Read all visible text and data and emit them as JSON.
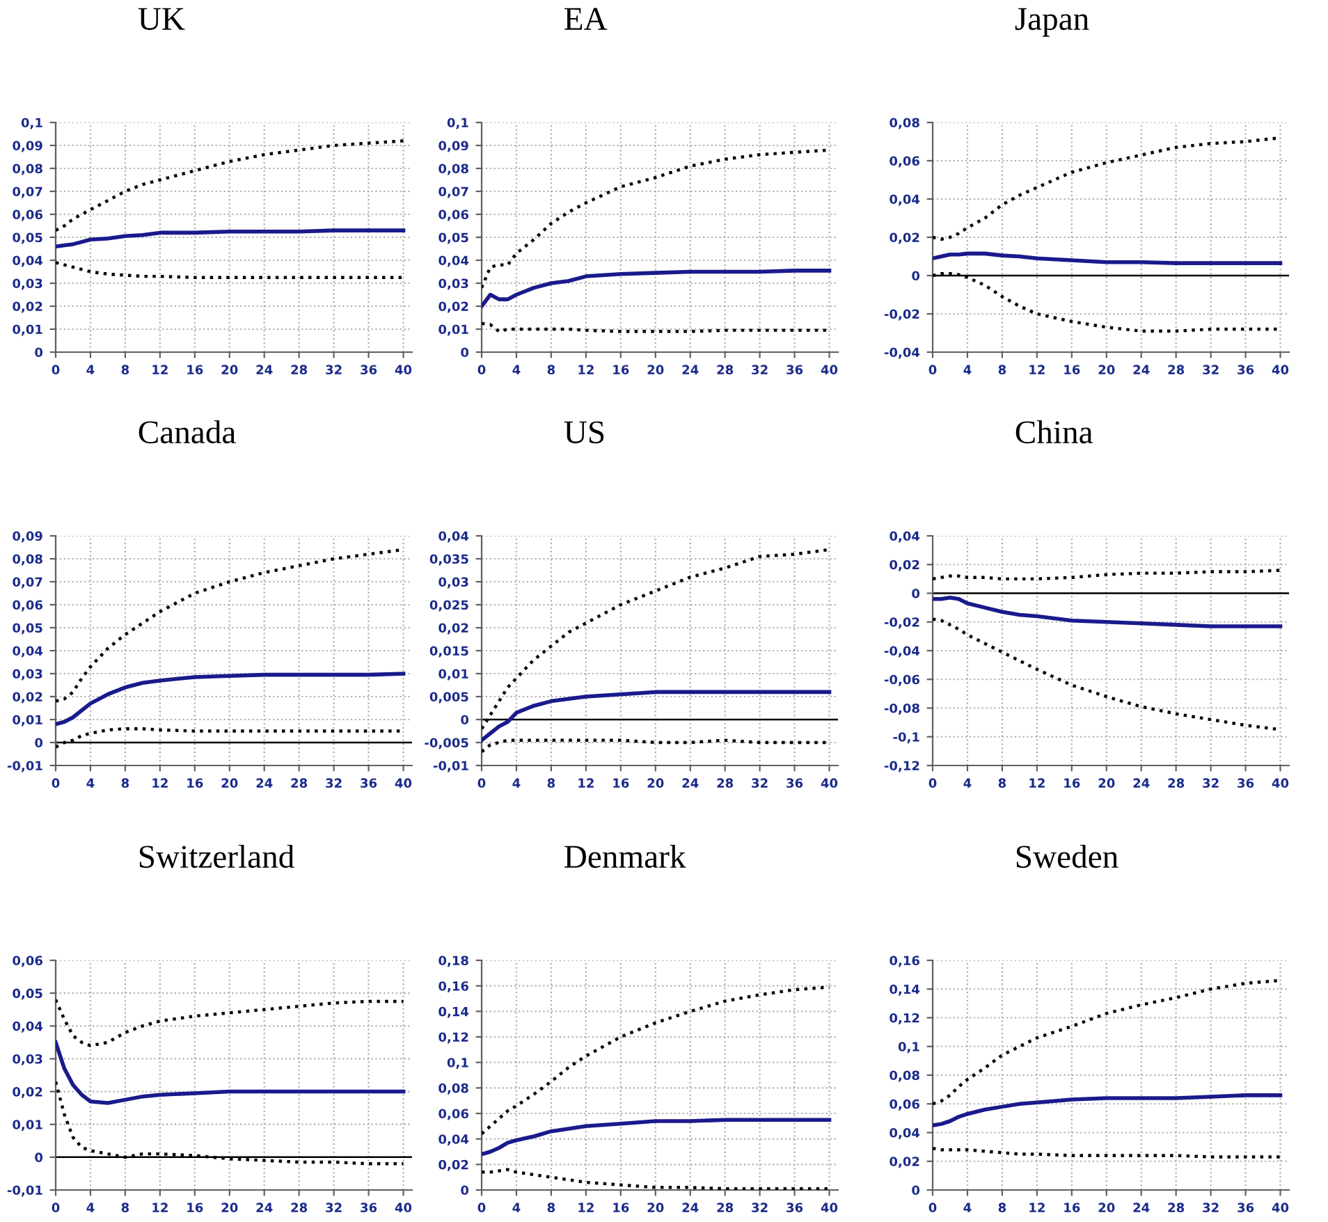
{
  "chart_data": [
    {
      "type": "line",
      "title": "UK",
      "x": [
        0,
        1,
        2,
        3,
        4,
        6,
        8,
        10,
        12,
        16,
        20,
        24,
        28,
        32,
        36,
        40
      ],
      "xlim": [
        0,
        41
      ],
      "xticks": [
        0,
        4,
        8,
        12,
        16,
        20,
        24,
        28,
        32,
        36,
        40
      ],
      "ylim": [
        0,
        0.1
      ],
      "yticks": [
        0,
        {
          "value": 0.01,
          "label": "0,01"
        },
        {
          "value": 0.02,
          "label": "0,02"
        },
        {
          "value": 0.03,
          "label": "0,03"
        },
        {
          "value": 0.04,
          "label": "0,04"
        },
        {
          "value": 0.05,
          "label": "0,05"
        },
        {
          "value": 0.06,
          "label": "0,06"
        },
        {
          "value": 0.07,
          "label": "0,07"
        },
        {
          "value": 0.08,
          "label": "0,08"
        },
        {
          "value": 0.09,
          "label": "0,09"
        },
        {
          "value": 0.1,
          "label": "0,1"
        }
      ],
      "grid": true,
      "series": [
        {
          "color": "#000000",
          "line_style": "dotted",
          "values": [
            0.053,
            0.055,
            0.058,
            0.06,
            0.062,
            0.066,
            0.07,
            0.073,
            0.075,
            0.079,
            0.083,
            0.086,
            0.088,
            0.09,
            0.091,
            0.092
          ]
        },
        {
          "color": "#1a1a8c",
          "line_style": "solid",
          "values": [
            0.046,
            0.0465,
            0.047,
            0.048,
            0.049,
            0.0495,
            0.0505,
            0.051,
            0.052,
            0.052,
            0.0525,
            0.0525,
            0.0525,
            0.053,
            0.053,
            0.053
          ]
        },
        {
          "color": "#000000",
          "line_style": "dotted",
          "values": [
            0.039,
            0.038,
            0.037,
            0.036,
            0.035,
            0.034,
            0.0335,
            0.033,
            0.033,
            0.0325,
            0.0325,
            0.0325,
            0.0325,
            0.0325,
            0.0325,
            0.0325
          ]
        }
      ]
    },
    {
      "type": "line",
      "title": "EA",
      "x": [
        0,
        1,
        2,
        3,
        4,
        6,
        8,
        10,
        12,
        16,
        20,
        24,
        28,
        32,
        36,
        40
      ],
      "xlim": [
        0,
        41
      ],
      "xticks": [
        0,
        4,
        8,
        12,
        16,
        20,
        24,
        28,
        32,
        36,
        40
      ],
      "ylim": [
        0,
        0.1
      ],
      "yticks": [
        0,
        {
          "value": 0.01,
          "label": "0,01"
        },
        {
          "value": 0.02,
          "label": "0,02"
        },
        {
          "value": 0.03,
          "label": "0,03"
        },
        {
          "value": 0.04,
          "label": "0,04"
        },
        {
          "value": 0.05,
          "label": "0,05"
        },
        {
          "value": 0.06,
          "label": "0,06"
        },
        {
          "value": 0.07,
          "label": "0,07"
        },
        {
          "value": 0.08,
          "label": "0,08"
        },
        {
          "value": 0.09,
          "label": "0,09"
        },
        {
          "value": 0.1,
          "label": "0,1"
        }
      ],
      "grid": true,
      "series": [
        {
          "color": "#000000",
          "line_style": "dotted",
          "values": [
            0.028,
            0.037,
            0.038,
            0.038,
            0.043,
            0.049,
            0.056,
            0.061,
            0.065,
            0.072,
            0.076,
            0.081,
            0.084,
            0.086,
            0.087,
            0.088
          ]
        },
        {
          "color": "#1a1a8c",
          "line_style": "solid",
          "values": [
            0.02,
            0.025,
            0.023,
            0.023,
            0.025,
            0.028,
            0.03,
            0.031,
            0.033,
            0.034,
            0.0345,
            0.035,
            0.035,
            0.035,
            0.0355,
            0.0355
          ]
        },
        {
          "color": "#000000",
          "line_style": "dotted",
          "values": [
            0.0125,
            0.012,
            0.009,
            0.01,
            0.01,
            0.01,
            0.01,
            0.01,
            0.0095,
            0.009,
            0.009,
            0.009,
            0.0095,
            0.0095,
            0.0095,
            0.0095
          ]
        }
      ]
    },
    {
      "type": "line",
      "title": "Japan",
      "x": [
        0,
        1,
        2,
        3,
        4,
        6,
        8,
        10,
        12,
        16,
        20,
        24,
        28,
        32,
        36,
        40
      ],
      "xlim": [
        0,
        41
      ],
      "xticks": [
        0,
        4,
        8,
        12,
        16,
        20,
        24,
        28,
        32,
        36,
        40
      ],
      "ylim": [
        -0.04,
        0.08
      ],
      "yticks": [
        {
          "value": -0.04,
          "label": "-0,04"
        },
        {
          "value": -0.02,
          "label": "-0,02"
        },
        0,
        {
          "value": 0.02,
          "label": "0,02"
        },
        {
          "value": 0.04,
          "label": "0,04"
        },
        {
          "value": 0.06,
          "label": "0,06"
        },
        {
          "value": 0.08,
          "label": "0,08"
        }
      ],
      "grid": true,
      "ref_lines": [
        {
          "axis": "y",
          "value": 0,
          "color": "#000000"
        }
      ],
      "series": [
        {
          "color": "#000000",
          "line_style": "dotted",
          "values": [
            0.02,
            0.019,
            0.02,
            0.022,
            0.025,
            0.03,
            0.037,
            0.042,
            0.046,
            0.054,
            0.059,
            0.063,
            0.067,
            0.069,
            0.07,
            0.072
          ]
        },
        {
          "color": "#1a1a8c",
          "line_style": "solid",
          "values": [
            0.009,
            0.01,
            0.011,
            0.011,
            0.0115,
            0.0115,
            0.0105,
            0.01,
            0.009,
            0.008,
            0.007,
            0.007,
            0.0065,
            0.0065,
            0.0065,
            0.0065
          ]
        },
        {
          "color": "#000000",
          "line_style": "dotted",
          "values": [
            0,
            0.001,
            0.001,
            0.0005,
            -0.001,
            -0.005,
            -0.011,
            -0.016,
            -0.02,
            -0.024,
            -0.027,
            -0.029,
            -0.029,
            -0.028,
            -0.028,
            -0.028
          ]
        }
      ]
    },
    {
      "type": "line",
      "title": "Canada",
      "x": [
        0,
        1,
        2,
        3,
        4,
        6,
        8,
        10,
        12,
        16,
        20,
        24,
        28,
        32,
        36,
        40
      ],
      "xlim": [
        0,
        41
      ],
      "xticks": [
        0,
        4,
        8,
        12,
        16,
        20,
        24,
        28,
        32,
        36,
        40
      ],
      "ylim": [
        -0.01,
        0.09
      ],
      "yticks": [
        {
          "value": -0.01,
          "label": "-0,01"
        },
        0,
        {
          "value": 0.01,
          "label": "0,01"
        },
        {
          "value": 0.02,
          "label": "0,02"
        },
        {
          "value": 0.03,
          "label": "0,03"
        },
        {
          "value": 0.04,
          "label": "0,04"
        },
        {
          "value": 0.05,
          "label": "0,05"
        },
        {
          "value": 0.06,
          "label": "0,06"
        },
        {
          "value": 0.07,
          "label": "0,07"
        },
        {
          "value": 0.08,
          "label": "0,08"
        },
        {
          "value": 0.09,
          "label": "0,09"
        }
      ],
      "grid": true,
      "ref_lines": [
        {
          "axis": "y",
          "value": 0,
          "color": "#000000"
        }
      ],
      "series": [
        {
          "color": "#000000",
          "line_style": "dotted",
          "values": [
            0.018,
            0.019,
            0.022,
            0.028,
            0.033,
            0.041,
            0.047,
            0.052,
            0.057,
            0.065,
            0.07,
            0.074,
            0.077,
            0.08,
            0.082,
            0.084
          ]
        },
        {
          "color": "#1a1a8c",
          "line_style": "solid",
          "values": [
            0.008,
            0.009,
            0.011,
            0.014,
            0.017,
            0.021,
            0.024,
            0.026,
            0.027,
            0.0285,
            0.029,
            0.0295,
            0.0295,
            0.0295,
            0.0295,
            0.03
          ]
        },
        {
          "color": "#000000",
          "line_style": "dotted",
          "values": [
            -0.002,
            0,
            0.001,
            0.003,
            0.004,
            0.0055,
            0.006,
            0.006,
            0.0055,
            0.005,
            0.005,
            0.005,
            0.005,
            0.005,
            0.005,
            0.005
          ]
        }
      ]
    },
    {
      "type": "line",
      "title": "US",
      "x": [
        0,
        1,
        2,
        3,
        4,
        6,
        8,
        10,
        12,
        16,
        20,
        24,
        28,
        32,
        36,
        40
      ],
      "xlim": [
        0,
        41
      ],
      "xticks": [
        0,
        4,
        8,
        12,
        16,
        20,
        24,
        28,
        32,
        36,
        40
      ],
      "ylim": [
        -0.01,
        0.04
      ],
      "yticks": [
        {
          "value": -0.01,
          "label": "-0,01"
        },
        {
          "value": -0.005,
          "label": "-0,005"
        },
        0,
        {
          "value": 0.005,
          "label": "0,005"
        },
        {
          "value": 0.01,
          "label": "0,01"
        },
        {
          "value": 0.015,
          "label": "0,015"
        },
        {
          "value": 0.02,
          "label": "0,02"
        },
        {
          "value": 0.025,
          "label": "0,025"
        },
        {
          "value": 0.03,
          "label": "0,03"
        },
        {
          "value": 0.035,
          "label": "0,035"
        },
        {
          "value": 0.04,
          "label": "0,04"
        }
      ],
      "grid": true,
      "ref_lines": [
        {
          "axis": "y",
          "value": 0,
          "color": "#000000"
        }
      ],
      "series": [
        {
          "color": "#000000",
          "line_style": "dotted",
          "values": [
            -0.002,
            0.001,
            0.004,
            0.007,
            0.009,
            0.013,
            0.016,
            0.019,
            0.021,
            0.025,
            0.028,
            0.031,
            0.033,
            0.0355,
            0.036,
            0.037
          ]
        },
        {
          "color": "#1a1a8c",
          "line_style": "solid",
          "values": [
            -0.0045,
            -0.003,
            -0.0015,
            -0.0005,
            0.0015,
            0.003,
            0.004,
            0.0045,
            0.005,
            0.0055,
            0.006,
            0.006,
            0.006,
            0.006,
            0.006,
            0.006
          ]
        },
        {
          "color": "#000000",
          "line_style": "dotted",
          "values": [
            -0.007,
            -0.0055,
            -0.005,
            -0.0045,
            -0.0045,
            -0.0045,
            -0.0045,
            -0.0045,
            -0.0045,
            -0.0045,
            -0.005,
            -0.005,
            -0.0045,
            -0.005,
            -0.005,
            -0.005
          ]
        }
      ]
    },
    {
      "type": "line",
      "title": "China",
      "x": [
        0,
        1,
        2,
        3,
        4,
        6,
        8,
        10,
        12,
        16,
        20,
        24,
        28,
        32,
        36,
        40
      ],
      "xlim": [
        0,
        41
      ],
      "xticks": [
        0,
        4,
        8,
        12,
        16,
        20,
        24,
        28,
        32,
        36,
        40
      ],
      "ylim": [
        -0.12,
        0.04
      ],
      "yticks": [
        {
          "value": -0.12,
          "label": "-0,12"
        },
        {
          "value": -0.1,
          "label": "-0,1"
        },
        {
          "value": -0.08,
          "label": "-0,08"
        },
        {
          "value": -0.06,
          "label": "-0,06"
        },
        {
          "value": -0.04,
          "label": "-0,04"
        },
        {
          "value": -0.02,
          "label": "-0,02"
        },
        0,
        {
          "value": 0.02,
          "label": "0,02"
        },
        {
          "value": 0.04,
          "label": "0,04"
        }
      ],
      "grid": true,
      "ref_lines": [
        {
          "axis": "y",
          "value": 0,
          "color": "#000000"
        }
      ],
      "series": [
        {
          "color": "#000000",
          "line_style": "dotted",
          "values": [
            0.01,
            0.011,
            0.012,
            0.012,
            0.011,
            0.011,
            0.01,
            0.01,
            0.01,
            0.011,
            0.013,
            0.014,
            0.014,
            0.015,
            0.015,
            0.016
          ]
        },
        {
          "color": "#1a1a8c",
          "line_style": "solid",
          "values": [
            -0.004,
            -0.004,
            -0.003,
            -0.004,
            -0.007,
            -0.01,
            -0.013,
            -0.015,
            -0.016,
            -0.019,
            -0.02,
            -0.021,
            -0.022,
            -0.023,
            -0.023,
            -0.023
          ]
        },
        {
          "color": "#000000",
          "line_style": "dotted",
          "values": [
            -0.018,
            -0.019,
            -0.022,
            -0.025,
            -0.029,
            -0.035,
            -0.041,
            -0.047,
            -0.053,
            -0.064,
            -0.072,
            -0.079,
            -0.084,
            -0.088,
            -0.092,
            -0.095
          ]
        }
      ]
    },
    {
      "type": "line",
      "title": "Switzerland",
      "x": [
        0,
        1,
        2,
        3,
        4,
        6,
        8,
        10,
        12,
        16,
        20,
        24,
        28,
        32,
        36,
        40
      ],
      "xlim": [
        0,
        41
      ],
      "xticks": [
        0,
        4,
        8,
        12,
        16,
        20,
        24,
        28,
        32,
        36,
        40
      ],
      "ylim": [
        -0.01,
        0.06
      ],
      "yticks": [
        {
          "value": -0.01,
          "label": "-0,01"
        },
        0,
        {
          "value": 0.01,
          "label": "0,01"
        },
        {
          "value": 0.02,
          "label": "0,02"
        },
        {
          "value": 0.03,
          "label": "0,03"
        },
        {
          "value": 0.04,
          "label": "0,04"
        },
        {
          "value": 0.05,
          "label": "0,05"
        },
        {
          "value": 0.06,
          "label": "0,06"
        }
      ],
      "grid": true,
      "ref_lines": [
        {
          "axis": "y",
          "value": 0,
          "color": "#000000"
        }
      ],
      "series": [
        {
          "color": "#000000",
          "line_style": "dotted",
          "values": [
            0.048,
            0.042,
            0.037,
            0.035,
            0.034,
            0.035,
            0.038,
            0.04,
            0.0415,
            0.043,
            0.044,
            0.045,
            0.046,
            0.047,
            0.0475,
            0.0475
          ]
        },
        {
          "color": "#1a1a8c",
          "line_style": "solid",
          "values": [
            0.035,
            0.027,
            0.022,
            0.019,
            0.017,
            0.0165,
            0.0175,
            0.0185,
            0.019,
            0.0195,
            0.02,
            0.02,
            0.02,
            0.02,
            0.02,
            0.02
          ]
        },
        {
          "color": "#000000",
          "line_style": "dotted",
          "values": [
            0.023,
            0.013,
            0.006,
            0.003,
            0.002,
            0.001,
            0,
            0.001,
            0.001,
            0.0005,
            -0.0005,
            -0.001,
            -0.0015,
            -0.0015,
            -0.002,
            -0.002
          ]
        }
      ]
    },
    {
      "type": "line",
      "title": "Denmark",
      "x": [
        0,
        1,
        2,
        3,
        4,
        6,
        8,
        10,
        12,
        16,
        20,
        24,
        28,
        32,
        36,
        40
      ],
      "xlim": [
        0,
        41
      ],
      "xticks": [
        0,
        4,
        8,
        12,
        16,
        20,
        24,
        28,
        32,
        36,
        40
      ],
      "ylim": [
        0,
        0.18
      ],
      "yticks": [
        0,
        {
          "value": 0.02,
          "label": "0,02"
        },
        {
          "value": 0.04,
          "label": "0,04"
        },
        {
          "value": 0.06,
          "label": "0,06"
        },
        {
          "value": 0.08,
          "label": "0,08"
        },
        {
          "value": 0.1,
          "label": "0,1"
        },
        {
          "value": 0.12,
          "label": "0,12"
        },
        {
          "value": 0.14,
          "label": "0,14"
        },
        {
          "value": 0.16,
          "label": "0,16"
        },
        {
          "value": 0.18,
          "label": "0,18"
        }
      ],
      "grid": true,
      "series": [
        {
          "color": "#000000",
          "line_style": "dotted",
          "values": [
            0.044,
            0.05,
            0.056,
            0.062,
            0.066,
            0.075,
            0.085,
            0.096,
            0.105,
            0.12,
            0.131,
            0.14,
            0.148,
            0.153,
            0.157,
            0.159
          ]
        },
        {
          "color": "#1a1a8c",
          "line_style": "solid",
          "values": [
            0.028,
            0.03,
            0.033,
            0.037,
            0.039,
            0.042,
            0.046,
            0.048,
            0.05,
            0.052,
            0.054,
            0.054,
            0.055,
            0.055,
            0.055,
            0.055
          ]
        },
        {
          "color": "#000000",
          "line_style": "dotted",
          "values": [
            0.014,
            0.014,
            0.015,
            0.016,
            0.014,
            0.012,
            0.01,
            0.008,
            0.006,
            0.004,
            0.002,
            0.002,
            0.001,
            0.001,
            0.001,
            0.001
          ]
        }
      ]
    },
    {
      "type": "line",
      "title": "Sweden",
      "x": [
        0,
        1,
        2,
        3,
        4,
        6,
        8,
        10,
        12,
        16,
        20,
        24,
        28,
        32,
        36,
        40
      ],
      "xlim": [
        0,
        41
      ],
      "xticks": [
        0,
        4,
        8,
        12,
        16,
        20,
        24,
        28,
        32,
        36,
        40
      ],
      "ylim": [
        0,
        0.16
      ],
      "yticks": [
        0,
        {
          "value": 0.02,
          "label": "0,02"
        },
        {
          "value": 0.04,
          "label": "0,04"
        },
        {
          "value": 0.06,
          "label": "0,06"
        },
        {
          "value": 0.08,
          "label": "0,08"
        },
        {
          "value": 0.1,
          "label": "0,1"
        },
        {
          "value": 0.12,
          "label": "0,12"
        },
        {
          "value": 0.14,
          "label": "0,14"
        },
        {
          "value": 0.16,
          "label": "0,16"
        }
      ],
      "grid": true,
      "series": [
        {
          "color": "#000000",
          "line_style": "dotted",
          "values": [
            0.06,
            0.062,
            0.066,
            0.072,
            0.077,
            0.085,
            0.094,
            0.1,
            0.106,
            0.114,
            0.123,
            0.129,
            0.134,
            0.14,
            0.144,
            0.146
          ]
        },
        {
          "color": "#1a1a8c",
          "line_style": "solid",
          "values": [
            0.045,
            0.046,
            0.048,
            0.051,
            0.053,
            0.056,
            0.058,
            0.06,
            0.061,
            0.063,
            0.064,
            0.064,
            0.064,
            0.065,
            0.066,
            0.066
          ]
        },
        {
          "color": "#000000",
          "line_style": "dotted",
          "values": [
            0.029,
            0.028,
            0.028,
            0.028,
            0.028,
            0.027,
            0.026,
            0.025,
            0.025,
            0.024,
            0.024,
            0.024,
            0.024,
            0.023,
            0.023,
            0.023
          ]
        }
      ]
    }
  ]
}
